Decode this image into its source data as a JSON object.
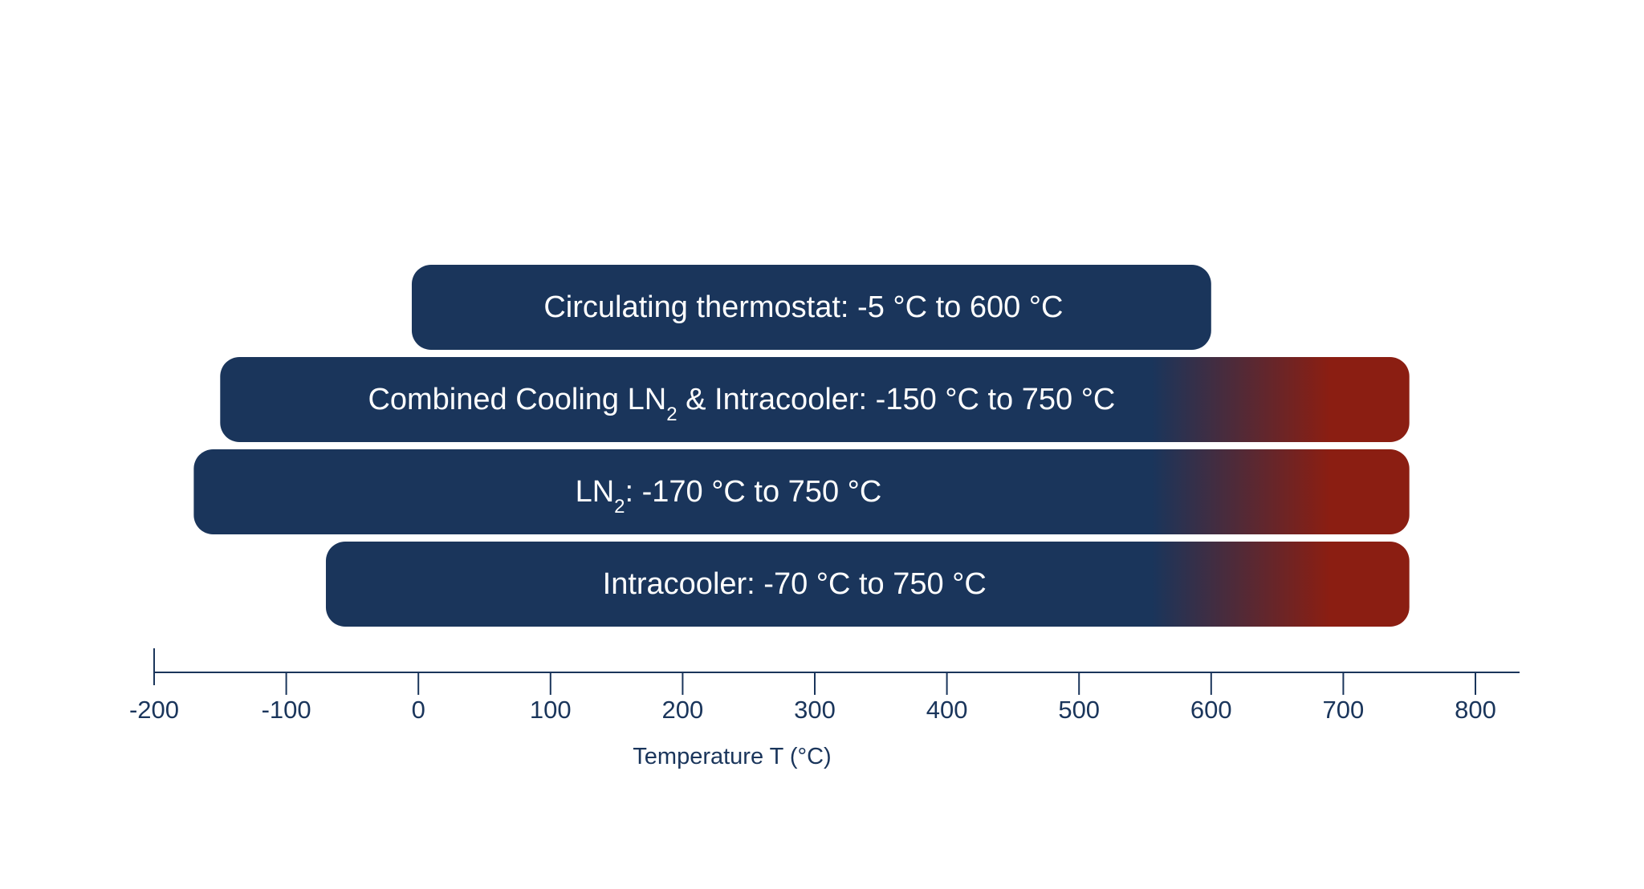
{
  "chart_data": {
    "type": "bar",
    "orientation": "horizontal",
    "xlabel": "Temperature T (°C)",
    "xlim": [
      -200,
      830
    ],
    "xticks": [
      -200,
      -100,
      0,
      100,
      200,
      300,
      400,
      500,
      600,
      700,
      800
    ],
    "xtick_labels": [
      "-200",
      "-100",
      "0",
      "100",
      "200",
      "300",
      "400",
      "500",
      "600",
      "700",
      "800"
    ],
    "grid": false,
    "legend": "none",
    "bars": [
      {
        "label_parts": [
          {
            "text": "Circulating thermostat: -5 °C to 600 °C",
            "sub": false
          }
        ],
        "min": -5,
        "max": 600,
        "gradient_to_hot": false
      },
      {
        "label_parts": [
          {
            "text": "Combined Cooling LN",
            "sub": false
          },
          {
            "text": "2",
            "sub": true
          },
          {
            "text": " & Intracooler: -150 °C to 750 °C",
            "sub": false
          }
        ],
        "min": -150,
        "max": 750,
        "gradient_to_hot": true
      },
      {
        "label_parts": [
          {
            "text": "LN",
            "sub": false
          },
          {
            "text": "2",
            "sub": true
          },
          {
            "text": ": -170 °C to 750 °C",
            "sub": false
          }
        ],
        "min": -170,
        "max": 750,
        "gradient_to_hot": true
      },
      {
        "label_parts": [
          {
            "text": "Intracooler: -70 °C to 750 °C",
            "sub": false
          }
        ],
        "min": -70,
        "max": 750,
        "gradient_to_hot": true
      }
    ],
    "colors": {
      "cold": "#1a355b",
      "hot": "#8b1e12",
      "axis": "#1a355b",
      "text": "#1a355b",
      "bar_text": "#ffffff"
    }
  }
}
